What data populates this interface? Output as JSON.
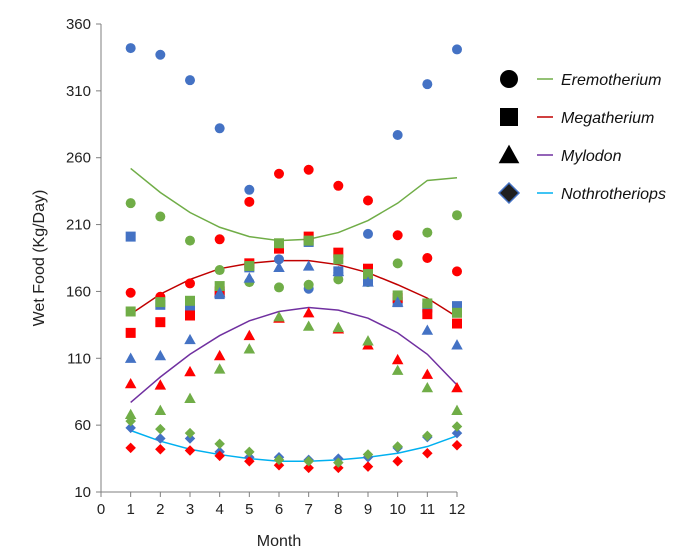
{
  "chart_data": {
    "type": "scatter",
    "xlabel": "Month",
    "ylabel": "Wet Food (Kg/Day)",
    "xlim": [
      0,
      12
    ],
    "ylim": [
      10,
      360
    ],
    "xticks": [
      0,
      1,
      2,
      3,
      4,
      5,
      6,
      7,
      8,
      9,
      10,
      11,
      12
    ],
    "yticks": [
      10,
      60,
      110,
      160,
      210,
      260,
      310,
      360
    ],
    "grid": false,
    "legend_position": "right",
    "legend": [
      {
        "name": "Eremotherium",
        "marker": "circle",
        "line_color": "#70ad47"
      },
      {
        "name": "Megatherium",
        "marker": "square",
        "line_color": "#c00000"
      },
      {
        "name": "Mylodon",
        "marker": "triangle",
        "line_color": "#7030a0"
      },
      {
        "name": "Nothrotheriops",
        "marker": "diamond",
        "line_color": "#00b0f0"
      }
    ],
    "marker_colors": {
      "blue": "#4472c4",
      "red": "#ff0000",
      "green": "#70ad47"
    },
    "series": [
      {
        "marker": "circle",
        "color": "blue",
        "x": [
          1,
          2,
          3,
          4,
          5,
          6,
          7,
          8,
          9,
          10,
          11,
          12
        ],
        "y": [
          342,
          337,
          318,
          282,
          236,
          184,
          162,
          174,
          203,
          277,
          315,
          341
        ]
      },
      {
        "marker": "circle",
        "color": "red",
        "x": [
          1,
          2,
          3,
          4,
          5,
          6,
          7,
          8,
          9,
          10,
          11,
          12
        ],
        "y": [
          159,
          156,
          166,
          199,
          227,
          248,
          251,
          239,
          228,
          202,
          185,
          175
        ]
      },
      {
        "marker": "circle",
        "color": "green",
        "x": [
          1,
          2,
          3,
          4,
          5,
          6,
          7,
          8,
          9,
          10,
          11,
          12
        ],
        "y": [
          226,
          216,
          198,
          176,
          167,
          163,
          165,
          169,
          167,
          181,
          204,
          217
        ]
      },
      {
        "marker": "square",
        "color": "blue",
        "x": [
          1,
          2,
          3,
          4,
          5,
          6,
          7,
          8,
          9,
          10,
          11,
          12
        ],
        "y": [
          201,
          150,
          148,
          158,
          178,
          193,
          197,
          175,
          168,
          152,
          148,
          149
        ]
      },
      {
        "marker": "square",
        "color": "red",
        "x": [
          1,
          2,
          3,
          4,
          5,
          6,
          7,
          8,
          9,
          10,
          11,
          12
        ],
        "y": [
          129,
          137,
          142,
          160,
          181,
          192,
          201,
          189,
          177,
          155,
          143,
          136
        ]
      },
      {
        "marker": "square",
        "color": "green",
        "x": [
          1,
          2,
          3,
          4,
          5,
          6,
          7,
          8,
          9,
          10,
          11,
          12
        ],
        "y": [
          145,
          152,
          153,
          164,
          179,
          196,
          198,
          184,
          173,
          157,
          151,
          144
        ]
      },
      {
        "marker": "triangle",
        "color": "blue",
        "x": [
          1,
          2,
          3,
          4,
          5,
          6,
          7,
          8,
          9,
          10,
          11,
          12
        ],
        "y": [
          110,
          112,
          124,
          159,
          170,
          178,
          179,
          175,
          167,
          152,
          131,
          120
        ]
      },
      {
        "marker": "triangle",
        "color": "red",
        "x": [
          1,
          2,
          3,
          4,
          5,
          6,
          7,
          8,
          9,
          10,
          11,
          12
        ],
        "y": [
          91,
          90,
          100,
          112,
          127,
          140,
          144,
          132,
          120,
          109,
          98,
          88
        ]
      },
      {
        "marker": "triangle",
        "color": "green",
        "x": [
          1,
          2,
          3,
          4,
          5,
          6,
          7,
          8,
          9,
          10,
          11,
          12
        ],
        "y": [
          68,
          71,
          80,
          102,
          117,
          141,
          134,
          133,
          123,
          101,
          88,
          71
        ]
      },
      {
        "marker": "diamond",
        "color": "blue",
        "x": [
          1,
          2,
          3,
          4,
          5,
          6,
          7,
          8,
          9,
          10,
          11,
          12
        ],
        "y": [
          58,
          50,
          50,
          40,
          36,
          36,
          34,
          35,
          36,
          43,
          51,
          54
        ]
      },
      {
        "marker": "diamond",
        "color": "red",
        "x": [
          1,
          2,
          3,
          4,
          5,
          6,
          7,
          8,
          9,
          10,
          11,
          12
        ],
        "y": [
          43,
          42,
          41,
          37,
          33,
          30,
          28,
          28,
          29,
          33,
          39,
          45
        ]
      },
      {
        "marker": "diamond",
        "color": "green",
        "x": [
          1,
          2,
          3,
          4,
          5,
          6,
          7,
          8,
          9,
          10,
          11,
          12
        ],
        "y": [
          63,
          57,
          54,
          46,
          40,
          34,
          33,
          32,
          38,
          44,
          52,
          59
        ]
      }
    ],
    "trendlines": [
      {
        "legend_index": 0,
        "color": "#70ad47",
        "x": [
          1,
          2,
          3,
          4,
          5,
          6,
          7,
          8,
          9,
          10,
          11,
          12
        ],
        "y": [
          252,
          234,
          219,
          208,
          201,
          198,
          199,
          204,
          213,
          226,
          243,
          245
        ]
      },
      {
        "legend_index": 1,
        "color": "#c00000",
        "x": [
          1,
          2,
          3,
          4,
          5,
          6,
          7,
          8,
          9,
          10,
          11,
          12
        ],
        "y": [
          143,
          158,
          169,
          177,
          181,
          183,
          183,
          180,
          174,
          165,
          155,
          141
        ]
      },
      {
        "legend_index": 2,
        "color": "#7030a0",
        "x": [
          1,
          2,
          3,
          4,
          5,
          6,
          7,
          8,
          9,
          10,
          11,
          12
        ],
        "y": [
          77,
          96,
          113,
          127,
          138,
          145,
          148,
          146,
          140,
          129,
          113,
          90
        ]
      },
      {
        "legend_index": 3,
        "color": "#00b0f0",
        "x": [
          1,
          2,
          3,
          4,
          5,
          6,
          7,
          8,
          9,
          10,
          11,
          12
        ],
        "y": [
          56,
          48,
          42,
          38,
          35,
          33,
          33,
          34,
          36,
          39,
          44,
          52
        ]
      }
    ]
  }
}
